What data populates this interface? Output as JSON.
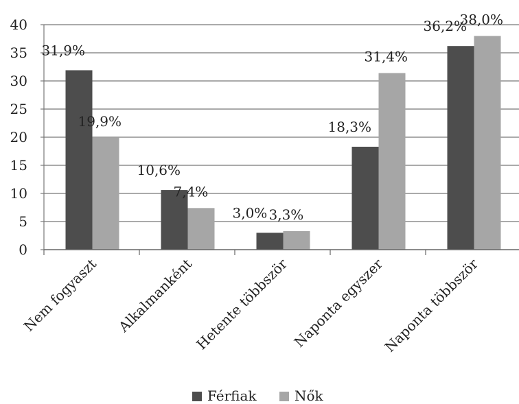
{
  "chart_data": {
    "type": "bar",
    "categories": [
      "Nem fogyaszt",
      "Alkalmanként",
      "Hetente többször",
      "Naponta egyszer",
      "Naponta többször"
    ],
    "series": [
      {
        "name": "Férfiak",
        "values": [
          31.9,
          10.6,
          3.0,
          18.3,
          36.2
        ],
        "labels": [
          "31,9%",
          "10,6%",
          "3,0%",
          "18,3%",
          "36,2%"
        ],
        "color": "#4d4d4d"
      },
      {
        "name": "Nők",
        "values": [
          19.9,
          7.4,
          3.3,
          31.4,
          38.0
        ],
        "labels": [
          "19,9%",
          "7,4%",
          "3,3%",
          "31,4%",
          "38,0%"
        ],
        "color": "#a6a6a6"
      }
    ],
    "yticks": [
      "0",
      "5",
      "10",
      "15",
      "20",
      "25",
      "30",
      "35",
      "40"
    ],
    "ylim": [
      0,
      40
    ],
    "grid": true,
    "legend": "bottom"
  }
}
